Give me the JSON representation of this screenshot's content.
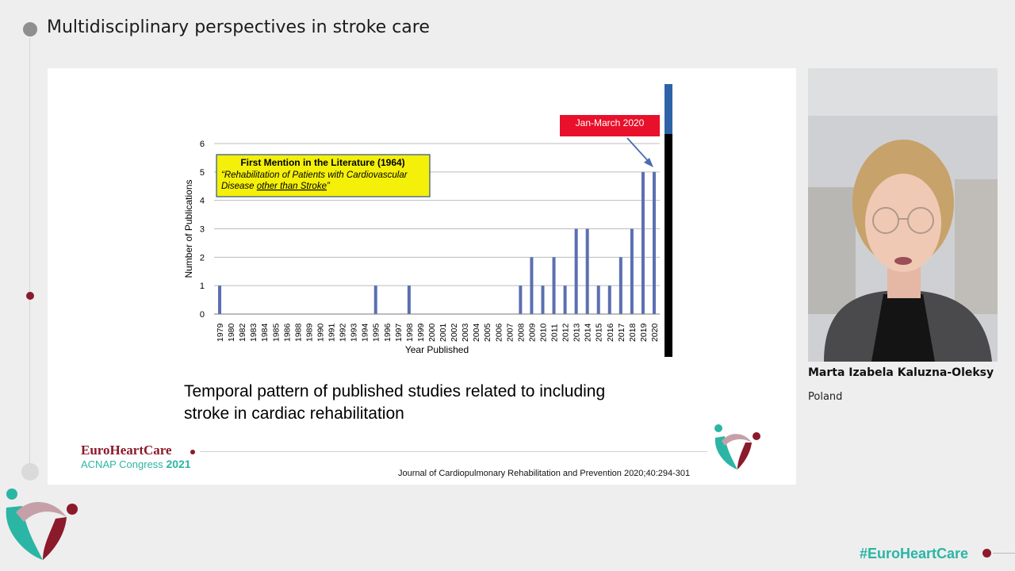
{
  "session": {
    "title": "Multidisciplinary perspectives in stroke care"
  },
  "slide": {
    "caption": "Temporal pattern of published studies related to including stroke in cardiac rehabilitation",
    "citation": "Journal of Cardiopulmonary Rehabilitation and Prevention 2020;40:294-301",
    "brand": {
      "name": "EuroHeartCare",
      "sub_prefix": "ACNAP Congress",
      "sub_year": "2021"
    }
  },
  "chart_data": {
    "type": "bar",
    "xlabel": "Year Published",
    "ylabel": "Number of Publications",
    "ylim": [
      0,
      6
    ],
    "yticks": [
      0,
      1,
      2,
      3,
      4,
      5,
      6
    ],
    "grid": true,
    "categories": [
      "1979",
      "1980",
      "1982",
      "1983",
      "1984",
      "1985",
      "1986",
      "1988",
      "1989",
      "1990",
      "1991",
      "1992",
      "1993",
      "1994",
      "1995",
      "1996",
      "1997",
      "1998",
      "1999",
      "2000",
      "2001",
      "2002",
      "2003",
      "2004",
      "2005",
      "2006",
      "2007",
      "2008",
      "2009",
      "2010",
      "2011",
      "2012",
      "2013",
      "2014",
      "2015",
      "2016",
      "2017",
      "2018",
      "2019",
      "2020"
    ],
    "values": [
      1,
      0,
      0,
      0,
      0,
      0,
      0,
      0,
      0,
      0,
      0,
      0,
      0,
      0,
      1,
      0,
      0,
      1,
      0,
      0,
      0,
      0,
      0,
      0,
      0,
      0,
      0,
      1,
      2,
      1,
      2,
      1,
      3,
      3,
      1,
      1,
      2,
      3,
      5,
      5
    ],
    "bar_color": "#5b6fb0",
    "annotations": [
      {
        "title": "First Mention in the Literature (1964)",
        "line1": "“Rehabilitation of Patients with Cardiovascular",
        "line2_prefix": "Disease ",
        "line2_underlined": "other than Stroke",
        "line2_suffix": "”",
        "background": "#f4f00a"
      },
      {
        "text": "Jan-March 2020",
        "background": "#e8102a",
        "points_to": "2020"
      }
    ]
  },
  "speaker": {
    "name": "Marta Izabela Kaluzna-Oleksy",
    "country": "Poland"
  },
  "footer": {
    "hashtag": "#EuroHeartCare"
  },
  "colors": {
    "brand_red": "#8b1a2b",
    "brand_teal": "#2bb5a5"
  }
}
